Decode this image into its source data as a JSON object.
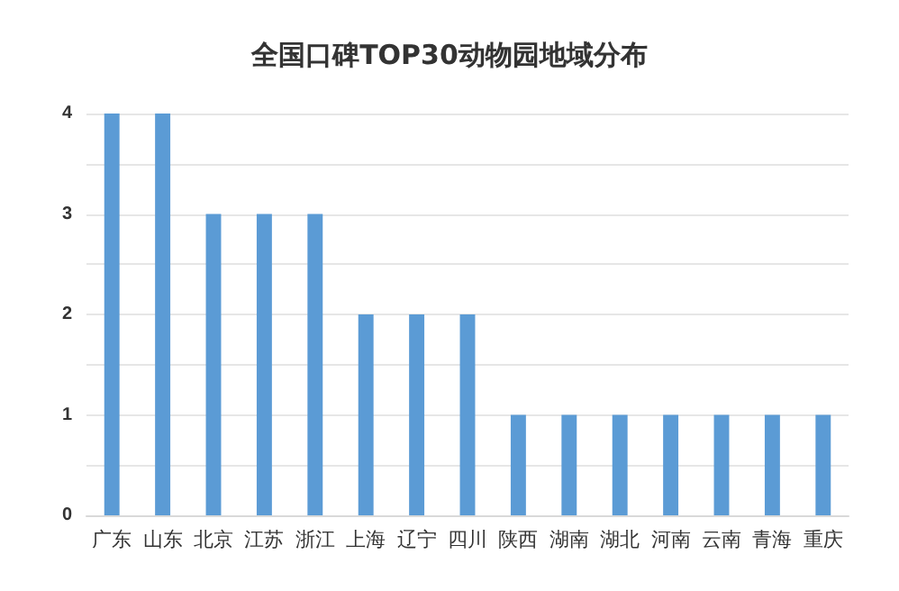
{
  "chart_data": {
    "type": "bar",
    "title": "全国口碑TOP30动物园地域分布",
    "categories": [
      "广东",
      "山东",
      "北京",
      "江苏",
      "浙江",
      "上海",
      "辽宁",
      "四川",
      "陕西",
      "湖南",
      "湖北",
      "河南",
      "云南",
      "青海",
      "重庆"
    ],
    "values": [
      4,
      4,
      3,
      3,
      3,
      2,
      2,
      2,
      1,
      1,
      1,
      1,
      1,
      1,
      1
    ],
    "color": "#5b9bd5",
    "ylim": [
      0,
      4
    ],
    "yticks": [
      0,
      {
        "value": 0.5,
        "label": null
      },
      1,
      {
        "value": 1.5,
        "label": null
      },
      2,
      {
        "value": 2.5,
        "label": null
      },
      3,
      {
        "value": 3.5,
        "label": null
      },
      4
    ],
    "grid": true
  }
}
